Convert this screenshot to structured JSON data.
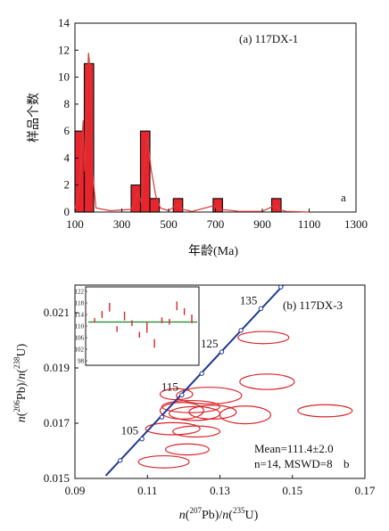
{
  "chart_data": [
    {
      "type": "bar",
      "panel_label": "a",
      "annotation": "(a) 117DX-1",
      "xlabel": "年龄(Ma)",
      "ylabel": "样品个数",
      "xlim": [
        100,
        1300
      ],
      "ylim": [
        0,
        14
      ],
      "x_ticks": [
        "100",
        "300",
        "500",
        "700",
        "900",
        "1100",
        "1300"
      ],
      "y_ticks": [
        "0",
        "2",
        "4",
        "6",
        "8",
        "10",
        "12",
        "14"
      ],
      "bin_width": 40,
      "bars": [
        {
          "x0": 100,
          "value": 6
        },
        {
          "x0": 140,
          "value": 11
        },
        {
          "x0": 340,
          "value": 2
        },
        {
          "x0": 380,
          "value": 6
        },
        {
          "x0": 420,
          "value": 1
        },
        {
          "x0": 520,
          "value": 1
        },
        {
          "x0": 690,
          "value": 1
        },
        {
          "x0": 940,
          "value": 1
        }
      ],
      "probability_curve": [
        [
          100,
          0.2
        ],
        [
          120,
          2.0
        ],
        [
          135,
          6.8
        ],
        [
          142,
          3.0
        ],
        [
          150,
          8.0
        ],
        [
          158,
          11.8
        ],
        [
          165,
          10.5
        ],
        [
          175,
          3.0
        ],
        [
          190,
          0.3
        ],
        [
          250,
          0.1
        ],
        [
          340,
          0.2
        ],
        [
          370,
          1.5
        ],
        [
          385,
          0.6
        ],
        [
          395,
          3.5
        ],
        [
          410,
          5.5
        ],
        [
          425,
          3.2
        ],
        [
          445,
          1.2
        ],
        [
          465,
          0.3
        ],
        [
          500,
          0.1
        ],
        [
          540,
          0.6
        ],
        [
          560,
          0.2
        ],
        [
          600,
          0.05
        ],
        [
          700,
          0.5
        ],
        [
          720,
          0.2
        ],
        [
          800,
          0.05
        ],
        [
          900,
          0.05
        ],
        [
          955,
          0.5
        ],
        [
          970,
          0.2
        ],
        [
          1000,
          0.05
        ],
        [
          1100,
          0.0
        ]
      ],
      "colors": {
        "bar": "#e8242c",
        "edge": "#111111",
        "curve": "#d63a3a"
      }
    },
    {
      "type": "scatter",
      "panel_label": "b",
      "annotation": "(b) 117DX-3",
      "xlabel": "n(207Pb)/n(235U)",
      "ylabel": "n(206Pb)/n(238U)",
      "xlim": [
        0.09,
        0.17
      ],
      "ylim": [
        0.015,
        0.022
      ],
      "x_ticks": [
        "0.09",
        "0.11",
        "0.13",
        "0.15",
        "0.17"
      ],
      "y_ticks": [
        "0.015",
        "0.017",
        "0.019",
        "0.021"
      ],
      "concordia_labels": [
        {
          "text": "105",
          "x": 0.1085,
          "y": 0.01643
        },
        {
          "text": "115",
          "x": 0.1195,
          "y": 0.01802
        },
        {
          "text": "125",
          "x": 0.1305,
          "y": 0.01958
        },
        {
          "text": "135",
          "x": 0.1413,
          "y": 0.02115
        }
      ],
      "concordia_markers": [
        {
          "x": 0.1025,
          "y": 0.01565
        },
        {
          "x": 0.1085,
          "y": 0.01643
        },
        {
          "x": 0.114,
          "y": 0.01722
        },
        {
          "x": 0.1195,
          "y": 0.01802
        },
        {
          "x": 0.125,
          "y": 0.0188
        },
        {
          "x": 0.1305,
          "y": 0.01958
        },
        {
          "x": 0.1358,
          "y": 0.02036
        },
        {
          "x": 0.1413,
          "y": 0.02115
        },
        {
          "x": 0.1468,
          "y": 0.02193
        }
      ],
      "concordia_line": [
        [
          0.0985,
          0.0151
        ],
        [
          0.1475,
          0.022
        ]
      ],
      "ellipses": [
        {
          "cx": 0.142,
          "cy": 0.0201,
          "rx": 0.007,
          "ry": 0.00022
        },
        {
          "cx": 0.143,
          "cy": 0.0185,
          "rx": 0.0075,
          "ry": 0.00028
        },
        {
          "cx": 0.159,
          "cy": 0.01745,
          "rx": 0.0075,
          "ry": 0.00022
        },
        {
          "cx": 0.127,
          "cy": 0.018,
          "rx": 0.009,
          "ry": 0.0003
        },
        {
          "cx": 0.137,
          "cy": 0.0173,
          "rx": 0.007,
          "ry": 0.00032
        },
        {
          "cx": 0.118,
          "cy": 0.01805,
          "rx": 0.0045,
          "ry": 0.0002
        },
        {
          "cx": 0.122,
          "cy": 0.0176,
          "rx": 0.008,
          "ry": 0.00022
        },
        {
          "cx": 0.1195,
          "cy": 0.01745,
          "rx": 0.006,
          "ry": 0.0003
        },
        {
          "cx": 0.123,
          "cy": 0.01735,
          "rx": 0.007,
          "ry": 0.00025
        },
        {
          "cx": 0.128,
          "cy": 0.0174,
          "rx": 0.0065,
          "ry": 0.00025
        },
        {
          "cx": 0.117,
          "cy": 0.0168,
          "rx": 0.0075,
          "ry": 0.00022
        },
        {
          "cx": 0.1235,
          "cy": 0.0167,
          "rx": 0.0065,
          "ry": 0.0002
        },
        {
          "cx": 0.121,
          "cy": 0.01605,
          "rx": 0.006,
          "ry": 0.0002
        },
        {
          "cx": 0.1145,
          "cy": 0.0156,
          "rx": 0.007,
          "ry": 0.00022
        }
      ],
      "stats": {
        "mean": "Mean=111.4±2.0",
        "n_mswd": "n=14, MSWD=8"
      },
      "inset": {
        "y_ticks": [
          "122",
          "118",
          "114",
          "110",
          "106",
          "102",
          "98"
        ],
        "ylim": [
          98,
          122
        ],
        "mean": 111.4,
        "bars": [
          {
            "c": 112.0,
            "e": 0.8
          },
          {
            "c": 114.0,
            "e": 1.2
          },
          {
            "c": 116.5,
            "e": 1.5
          },
          {
            "c": 109.0,
            "e": 1.0
          },
          {
            "c": 113.5,
            "e": 1.5
          },
          {
            "c": 111.0,
            "e": 1.0
          },
          {
            "c": 107.0,
            "e": 1.0
          },
          {
            "c": 109.5,
            "e": 1.8
          },
          {
            "c": 104.0,
            "e": 1.5
          },
          {
            "c": 112.0,
            "e": 1.0
          },
          {
            "c": 111.5,
            "e": 1.0
          },
          {
            "c": 117.0,
            "e": 1.5
          },
          {
            "c": 115.0,
            "e": 1.2
          },
          {
            "c": 112.5,
            "e": 1.5
          }
        ]
      },
      "colors": {
        "ellipse": "#d9262b",
        "concordia": "#1f3a93",
        "mean_line": "#2e8b3a",
        "inset_bar": "#d9262b"
      }
    }
  ]
}
